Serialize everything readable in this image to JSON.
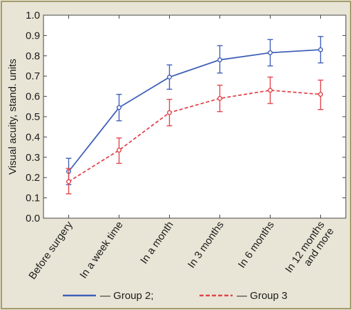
{
  "chart_data": {
    "type": "line",
    "title": "",
    "xlabel": "",
    "ylabel": "Visual acuity, stand. units",
    "ylim": [
      0.0,
      1.0
    ],
    "yticks": [
      "0.0",
      "0.1",
      "0.2",
      "0.3",
      "0.4",
      "0.5",
      "0.6",
      "0.7",
      "0.8",
      "0.9",
      "1.0"
    ],
    "grid": false,
    "legend_position": "bottom",
    "categories": [
      [
        "Before surgery"
      ],
      [
        "In a week time"
      ],
      [
        "In a month"
      ],
      [
        "In 3 months"
      ],
      [
        "In 6 months"
      ],
      [
        "In 12 months",
        "and more"
      ]
    ],
    "series": [
      {
        "name": "— Group 2;",
        "color": "#3f5fb8",
        "style": "solid",
        "values": [
          0.23,
          0.545,
          0.695,
          0.78,
          0.815,
          0.83
        ],
        "error_low": [
          0.165,
          0.48,
          0.635,
          0.715,
          0.75,
          0.765
        ],
        "error_high": [
          0.295,
          0.61,
          0.755,
          0.85,
          0.88,
          0.895
        ]
      },
      {
        "name": "— Group 3",
        "color": "#e2444a",
        "style": "dashed",
        "values": [
          0.18,
          0.335,
          0.52,
          0.59,
          0.63,
          0.61
        ],
        "error_low": [
          0.12,
          0.27,
          0.455,
          0.525,
          0.565,
          0.535
        ],
        "error_high": [
          0.245,
          0.395,
          0.585,
          0.655,
          0.695,
          0.68
        ]
      }
    ]
  }
}
